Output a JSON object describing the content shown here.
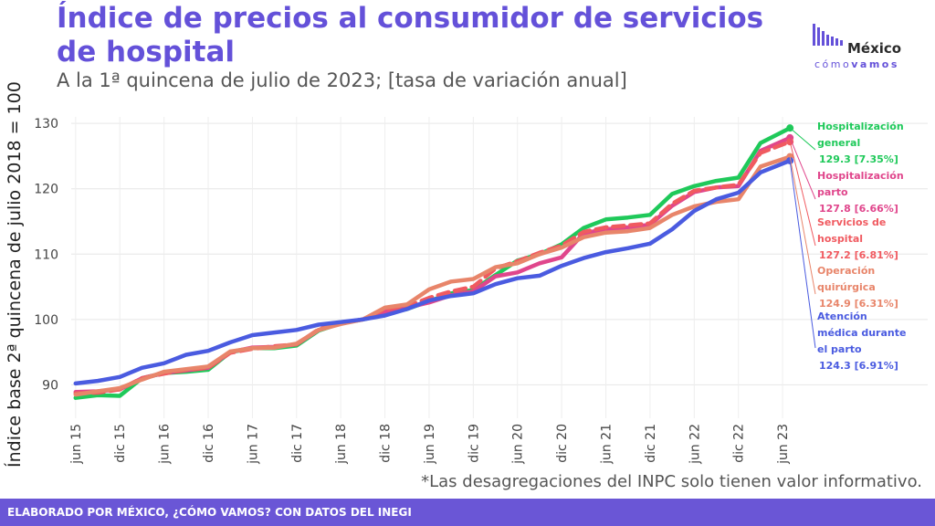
{
  "header": {
    "title": "Índice de precios al consumidor de servicios de hospital",
    "subtitle": "A la 1ª quincena de julio de 2023; [tasa de variación anual]"
  },
  "logo": {
    "word": "México",
    "sub_a": "cómo",
    "sub_b": "vamos"
  },
  "footnote": "*Las desagregaciones del INPC solo tienen valor informativo.",
  "footer": {
    "text": "ELABORADO POR MÉXICO, ¿CÓMO VAMOS? CON DATOS DEL INEGI"
  },
  "chart_data": {
    "type": "line",
    "ylabel": "Índice base 2ª quincena de julio 2018 = 100",
    "xlabel": "",
    "ylim": [
      86,
      131
    ],
    "y_ticks": [
      90,
      100,
      110,
      120,
      130
    ],
    "grid": true,
    "x_range": [
      "2015-06",
      "2023-07"
    ],
    "x_ticks": [
      {
        "label": "jun 15",
        "date": "2015-06"
      },
      {
        "label": "dic 15",
        "date": "2015-12"
      },
      {
        "label": "jun 16",
        "date": "2016-06"
      },
      {
        "label": "dic 16",
        "date": "2016-12"
      },
      {
        "label": "jun 17",
        "date": "2017-06"
      },
      {
        "label": "dic 17",
        "date": "2017-12"
      },
      {
        "label": "jun 18",
        "date": "2018-06"
      },
      {
        "label": "dic 18",
        "date": "2018-12"
      },
      {
        "label": "jun 19",
        "date": "2019-06"
      },
      {
        "label": "dic 19",
        "date": "2019-12"
      },
      {
        "label": "jun 20",
        "date": "2020-06"
      },
      {
        "label": "dic 20",
        "date": "2020-12"
      },
      {
        "label": "jun 21",
        "date": "2021-06"
      },
      {
        "label": "dic 21",
        "date": "2021-12"
      },
      {
        "label": "jun 22",
        "date": "2022-06"
      },
      {
        "label": "dic 22",
        "date": "2022-12"
      },
      {
        "label": "jun 23",
        "date": "2023-06"
      }
    ],
    "x": [
      "2015-06",
      "2015-09",
      "2015-12",
      "2016-03",
      "2016-06",
      "2016-09",
      "2016-12",
      "2017-03",
      "2017-06",
      "2017-09",
      "2017-12",
      "2018-03",
      "2018-06",
      "2018-09",
      "2018-12",
      "2019-03",
      "2019-06",
      "2019-09",
      "2019-12",
      "2020-03",
      "2020-06",
      "2020-09",
      "2020-12",
      "2021-03",
      "2021-06",
      "2021-09",
      "2021-12",
      "2022-03",
      "2022-06",
      "2022-09",
      "2022-12",
      "2023-03",
      "2023-07"
    ],
    "series": [
      {
        "name": "Hospitalización general",
        "color": "#1fc95a",
        "dashed": false,
        "values": [
          88.0,
          88.4,
          88.3,
          91.0,
          91.8,
          92.0,
          92.3,
          95.0,
          95.6,
          95.6,
          96.0,
          98.3,
          99.4,
          100.0,
          100.8,
          101.6,
          102.8,
          104.0,
          104.5,
          106.8,
          109.0,
          110.0,
          111.5,
          114.0,
          115.3,
          115.6,
          116.0,
          119.2,
          120.4,
          121.2,
          121.7,
          127.0,
          129.3
        ]
      },
      {
        "name": "Hospitalización parto",
        "color": "#e0468c",
        "dashed": false,
        "values": [
          88.9,
          89.0,
          89.3,
          91.0,
          91.8,
          92.2,
          92.6,
          95.0,
          95.7,
          95.8,
          96.2,
          98.4,
          99.5,
          100.0,
          101.2,
          101.8,
          102.6,
          103.7,
          104.3,
          106.6,
          107.2,
          108.6,
          109.5,
          113.2,
          113.8,
          114.1,
          114.5,
          117.4,
          119.5,
          120.2,
          120.4,
          125.8,
          127.8
        ]
      },
      {
        "name": "Servicios de hospital",
        "color": "#f05a60",
        "dashed": true,
        "values": [
          88.7,
          88.8,
          89.3,
          91.0,
          91.7,
          92.3,
          92.6,
          94.9,
          95.5,
          95.9,
          96.2,
          98.5,
          99.4,
          100.0,
          101.6,
          102.0,
          103.3,
          104.3,
          105.0,
          107.8,
          108.9,
          110.2,
          111.3,
          113.4,
          114.1,
          114.4,
          114.7,
          117.7,
          119.7,
          120.2,
          120.6,
          125.5,
          127.2
        ]
      },
      {
        "name": "Operación quirúrgica",
        "color": "#e8856a",
        "dashed": false,
        "values": [
          88.5,
          89.0,
          89.5,
          90.8,
          92.0,
          92.4,
          92.8,
          95.1,
          95.6,
          95.7,
          96.3,
          98.4,
          99.3,
          100.0,
          101.8,
          102.3,
          104.6,
          105.8,
          106.2,
          108.0,
          108.6,
          110.0,
          111.0,
          112.6,
          113.3,
          113.5,
          114.0,
          116.0,
          117.3,
          118.0,
          118.4,
          123.4,
          124.9
        ]
      },
      {
        "name": "Atención médica durante el parto",
        "color": "#4a5be0",
        "dashed": false,
        "values": [
          90.2,
          90.6,
          91.2,
          92.6,
          93.3,
          94.6,
          95.2,
          96.5,
          97.6,
          98.0,
          98.4,
          99.2,
          99.6,
          100.0,
          100.6,
          101.6,
          102.9,
          103.6,
          104.0,
          105.4,
          106.3,
          106.7,
          108.2,
          109.4,
          110.3,
          110.9,
          111.6,
          113.8,
          116.6,
          118.4,
          119.4,
          122.5,
          124.3
        ]
      }
    ],
    "annotations": [
      {
        "series": "Hospitalización general",
        "lines": [
          "Hospitalización",
          "general"
        ],
        "value": "129.3 [7.35%]"
      },
      {
        "series": "Hospitalización parto",
        "lines": [
          "Hospitalización",
          "parto"
        ],
        "value": "127.8 [6.66%]"
      },
      {
        "series": "Servicios de hospital",
        "lines": [
          "Servicios de",
          "hospital"
        ],
        "value": "127.2 [6.81%]"
      },
      {
        "series": "Operación quirúrgica",
        "lines": [
          "Operación",
          "quirúrgica"
        ],
        "value": "124.9 [6.31%]"
      },
      {
        "series": "Atención médica durante el parto",
        "lines": [
          "Atención",
          "médica durante",
          "el parto"
        ],
        "value": "124.3 [6.91%]"
      }
    ]
  }
}
